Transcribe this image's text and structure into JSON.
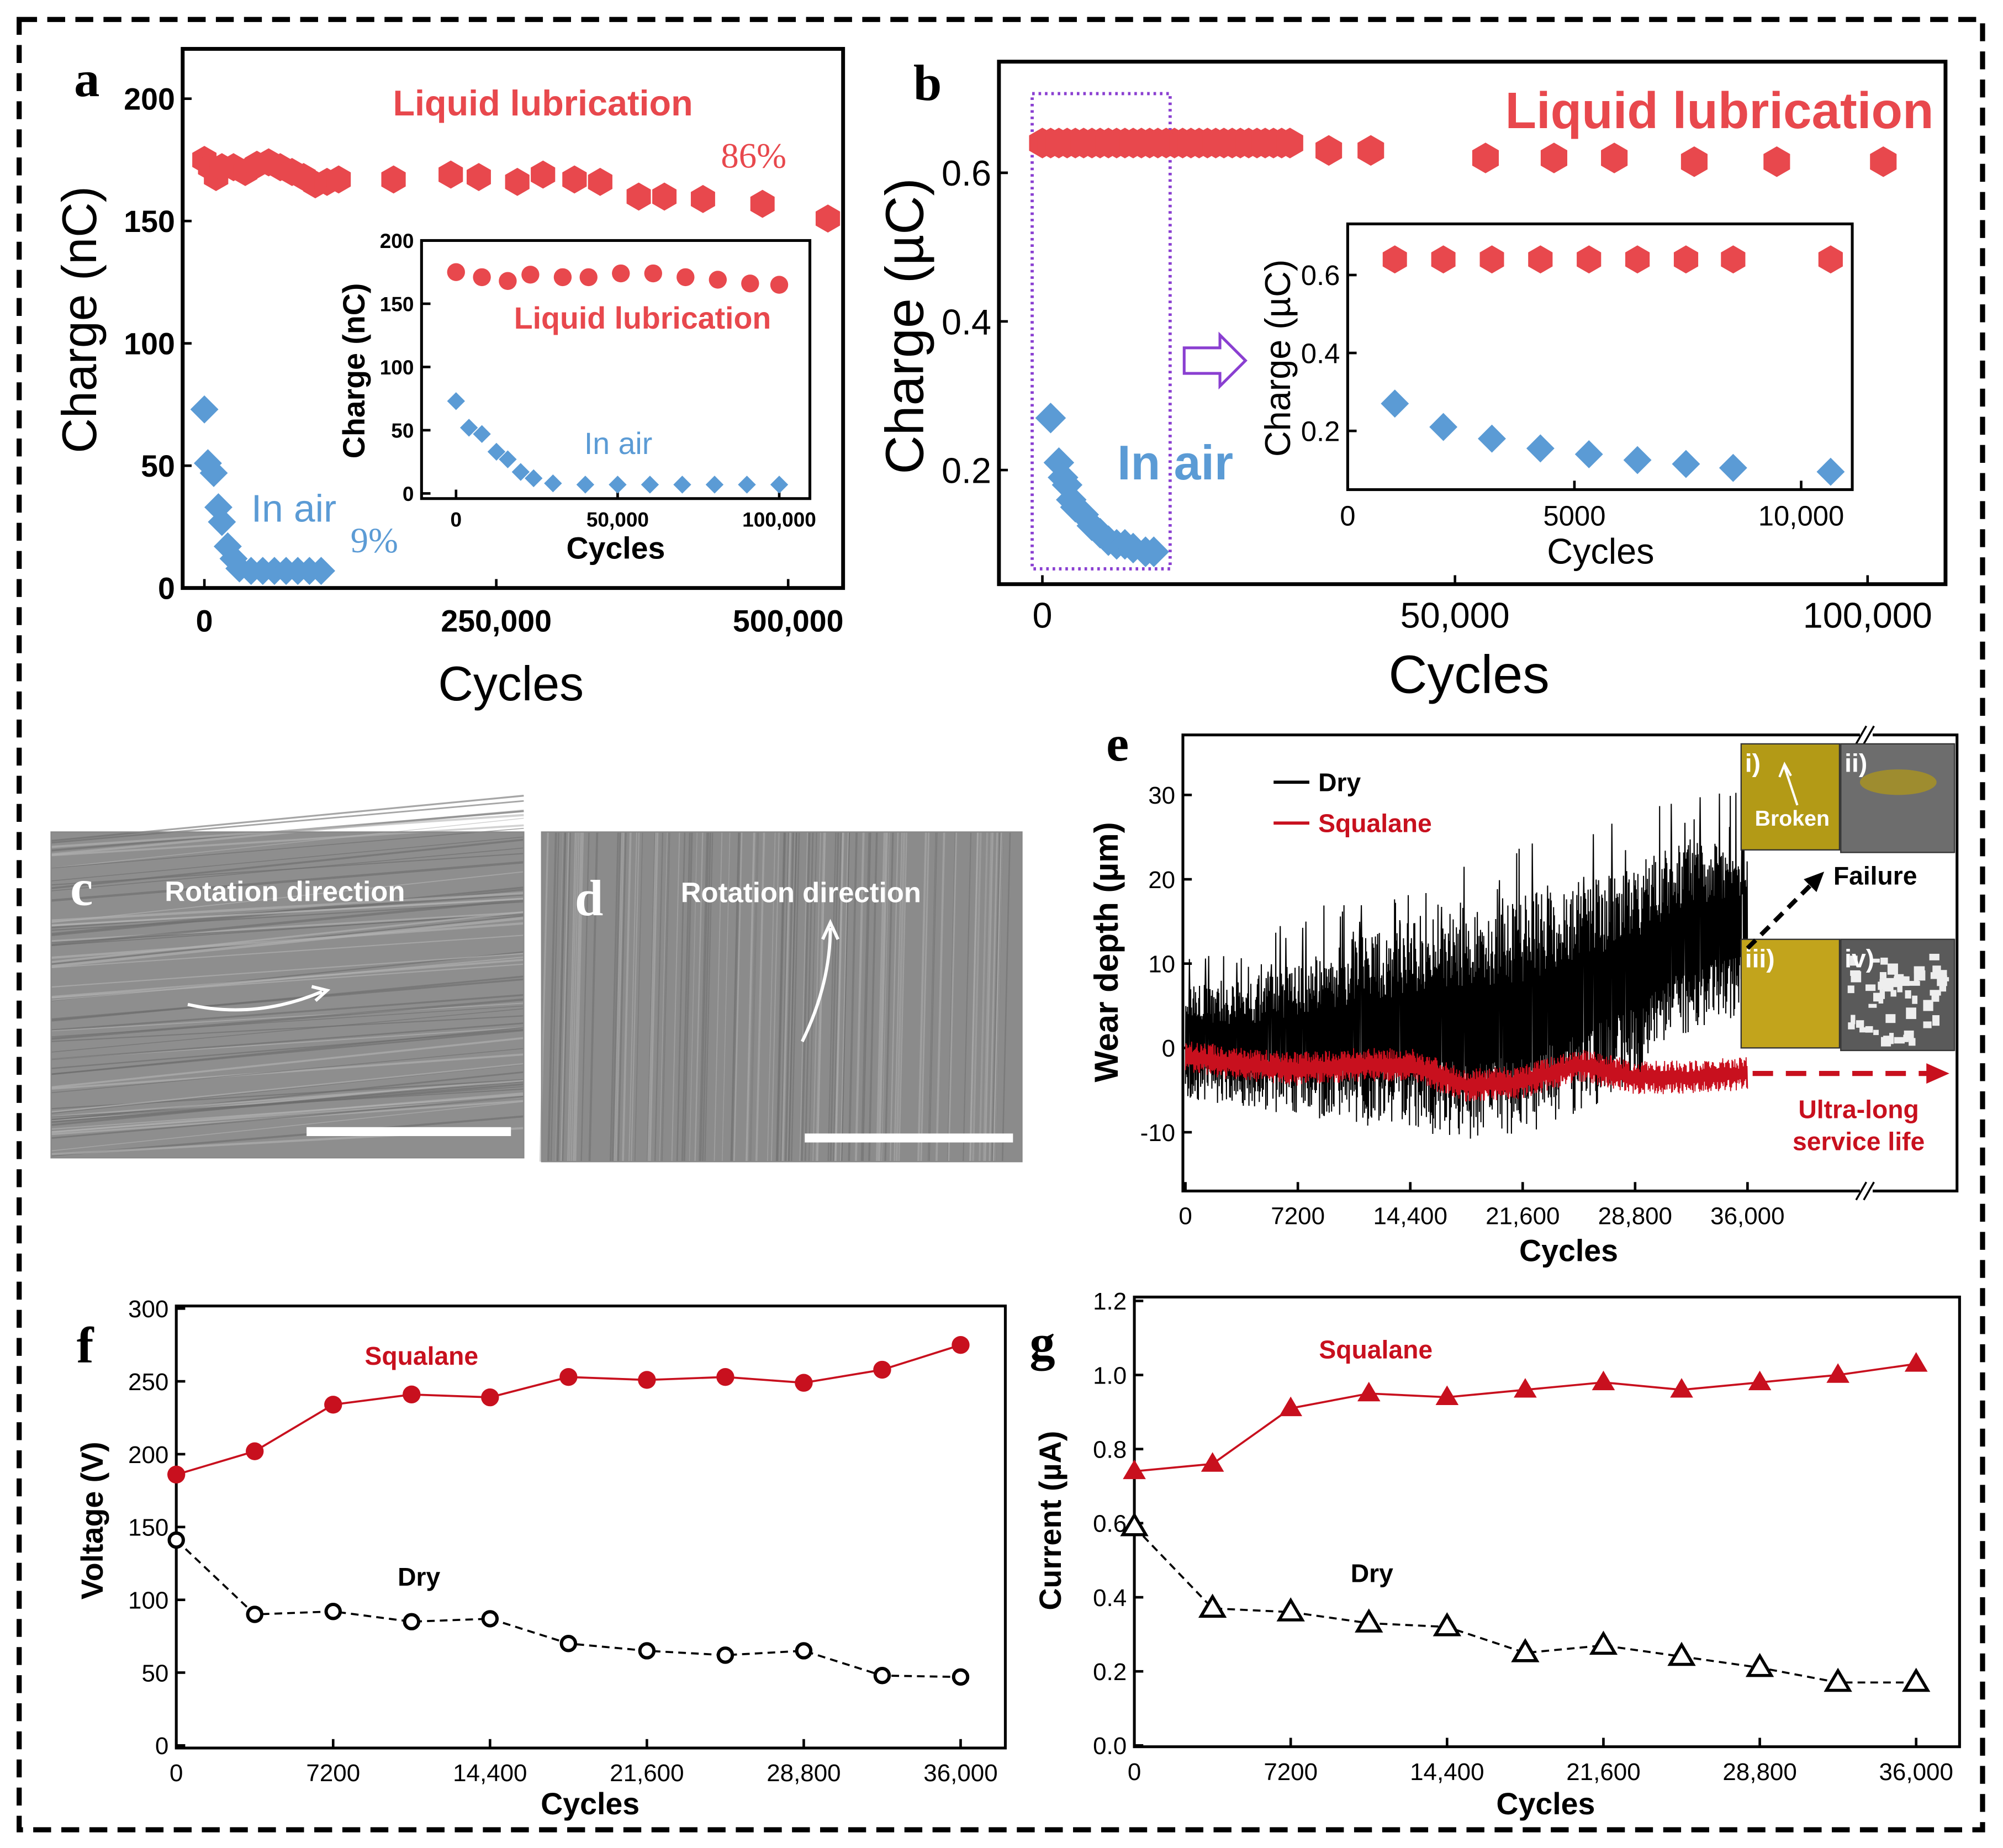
{
  "colors": {
    "lube_red": "#e8484d",
    "air_blue": "#5b9bd5",
    "squalane_red": "#c8101e",
    "dry_black": "#000000",
    "box_purple": "#8a3fd1"
  },
  "panels": {
    "c": {
      "label": "c",
      "caption": "Rotation direction"
    },
    "d": {
      "label": "d",
      "caption": "Rotation direction"
    }
  },
  "chart_data": [
    {
      "id": "a",
      "panel_label": "a",
      "type": "scatter",
      "xlabel": "Cycles",
      "ylabel": "Charge (nC)",
      "xlim": [
        -18600,
        547000
      ],
      "ylim": [
        0,
        220
      ],
      "xticks": [
        {
          "value": 0,
          "label": "0"
        },
        {
          "value": 250000,
          "label": "250,000"
        },
        {
          "value": 500000,
          "label": "500,000"
        }
      ],
      "yticks": [
        {
          "value": 0,
          "label": "0"
        },
        {
          "value": 50,
          "label": "50"
        },
        {
          "value": 100,
          "label": "100"
        },
        {
          "value": 150,
          "label": "150"
        },
        {
          "value": 200,
          "label": "200"
        }
      ],
      "series": [
        {
          "name": "Liquid lubrication",
          "color": "#e8484d",
          "marker": "hexagon",
          "x": [
            0,
            5000,
            10000,
            15000,
            25000,
            35000,
            45000,
            55000,
            65000,
            75000,
            85000,
            95000,
            105000,
            115000,
            162000,
            211000,
            235000,
            268000,
            290000,
            317000,
            339000,
            372000,
            394000,
            427000,
            478000,
            534000
          ],
          "y": [
            175,
            172,
            168,
            172,
            172,
            170,
            173,
            174,
            172,
            170,
            168,
            165,
            166,
            167,
            167,
            169,
            168,
            166,
            169,
            167,
            166,
            160,
            160,
            159,
            157,
            151
          ]
        },
        {
          "name": "In air",
          "color": "#5b9bd5",
          "marker": "diamond",
          "x": [
            0,
            3000,
            8000,
            12000,
            15000,
            20000,
            25000,
            30000,
            40000,
            50000,
            60000,
            70000,
            80000,
            90000,
            100000
          ],
          "y": [
            73,
            51,
            47,
            33,
            27,
            17,
            12,
            8,
            7,
            7,
            7,
            7,
            7,
            7,
            7
          ]
        }
      ],
      "annotations": [
        "86%",
        "9%"
      ]
    },
    {
      "id": "a-inset",
      "type": "scatter",
      "xlabel": "Cycles",
      "ylabel": "Charge (nC)",
      "xlim": [
        -10700,
        109000
      ],
      "ylim": [
        -4,
        200
      ],
      "xticks": [
        {
          "value": 0,
          "label": "0"
        },
        {
          "value": 50000,
          "label": "50,000"
        },
        {
          "value": 100000,
          "label": "100,000"
        }
      ],
      "yticks": [
        {
          "value": 0,
          "label": "0"
        },
        {
          "value": 50,
          "label": "50"
        },
        {
          "value": 100,
          "label": "100"
        },
        {
          "value": 150,
          "label": "150"
        },
        {
          "value": 200,
          "label": "200"
        }
      ],
      "series": [
        {
          "name": "Liquid lubrication",
          "color": "#e8484d",
          "marker": "circle",
          "x": [
            0,
            8000,
            16000,
            23000,
            33000,
            41000,
            51000,
            61000,
            71000,
            81000,
            91000,
            100000
          ],
          "y": [
            175,
            171,
            168,
            173,
            171,
            171,
            174,
            174,
            171,
            169,
            166,
            165
          ]
        },
        {
          "name": "In air",
          "color": "#5b9bd5",
          "marker": "diamond",
          "x": [
            0,
            4000,
            8000,
            12500,
            16000,
            20000,
            24000,
            30000,
            40000,
            50000,
            60000,
            70000,
            80000,
            90000,
            100000
          ],
          "y": [
            73,
            52,
            47,
            33,
            27,
            17,
            12,
            8,
            7,
            7,
            7,
            7,
            7,
            7,
            7
          ]
        }
      ],
      "annotations": []
    },
    {
      "id": "b",
      "panel_label": "b",
      "type": "scatter",
      "xlabel": "Cycles",
      "ylabel": "Charge (µC)",
      "xlim": [
        -5300,
        109400
      ],
      "ylim": [
        0.046,
        0.749
      ],
      "xticks": [
        {
          "value": 0,
          "label": "0"
        },
        {
          "value": 50000,
          "label": "50,000"
        },
        {
          "value": 100000,
          "label": "100,000"
        }
      ],
      "yticks": [
        {
          "value": 0.2,
          "label": "0.2"
        },
        {
          "value": 0.4,
          "label": "0.4"
        },
        {
          "value": 0.6,
          "label": "0.6"
        }
      ],
      "series": [
        {
          "name": "Liquid lubrication",
          "color": "#e8484d",
          "marker": "hexagon",
          "x": [
            0,
            1000,
            2000,
            3000,
            4000,
            5000,
            6000,
            7000,
            8000,
            9000,
            10000,
            11000,
            12000,
            13000,
            14000,
            15000,
            16000,
            17000,
            18000,
            19000,
            20000,
            21000,
            22000,
            23000,
            24000,
            25000,
            26000,
            27000,
            28000,
            29000,
            30000,
            34700,
            39800,
            53700,
            62000,
            69300,
            79000,
            89000,
            101900
          ],
          "y": [
            0.64,
            0.64,
            0.64,
            0.64,
            0.64,
            0.64,
            0.64,
            0.64,
            0.64,
            0.64,
            0.64,
            0.64,
            0.64,
            0.64,
            0.64,
            0.64,
            0.64,
            0.64,
            0.64,
            0.64,
            0.64,
            0.64,
            0.64,
            0.64,
            0.64,
            0.64,
            0.64,
            0.64,
            0.64,
            0.64,
            0.64,
            0.63,
            0.63,
            0.62,
            0.62,
            0.62,
            0.615,
            0.615,
            0.615
          ]
        },
        {
          "name": "In air",
          "color": "#5b9bd5",
          "marker": "diamond",
          "x": [
            1000,
            2000,
            2500,
            3000,
            3500,
            4000,
            5000,
            6000,
            7000,
            8000,
            9000,
            10000,
            11000,
            12500,
            13500
          ],
          "y": [
            0.27,
            0.21,
            0.19,
            0.18,
            0.16,
            0.15,
            0.14,
            0.125,
            0.115,
            0.105,
            0.1,
            0.1,
            0.095,
            0.09,
            0.09
          ]
        }
      ],
      "annotations": []
    },
    {
      "id": "b-inset",
      "type": "scatter",
      "xlabel": "Cycles",
      "ylabel": "Charge (µC)",
      "xlim": [
        0,
        11100
      ],
      "ylim": [
        0.05,
        0.73
      ],
      "xticks": [
        {
          "value": 0,
          "label": "0"
        },
        {
          "value": 5000,
          "label": "5000"
        },
        {
          "value": 10000,
          "label": "10,000"
        }
      ],
      "yticks": [
        {
          "value": 0.2,
          "label": "0.2"
        },
        {
          "value": 0.4,
          "label": "0.4"
        },
        {
          "value": 0.6,
          "label": "0.6"
        }
      ],
      "series": [
        {
          "color": "#e8484d",
          "marker": "hexagon",
          "x": [
            1040,
            2110,
            3180,
            4250,
            5320,
            6390,
            7460,
            8500,
            10650
          ],
          "y": [
            0.64,
            0.64,
            0.64,
            0.64,
            0.64,
            0.64,
            0.64,
            0.64,
            0.64
          ]
        },
        {
          "color": "#5b9bd5",
          "marker": "diamond",
          "x": [
            1040,
            2110,
            3180,
            4250,
            5320,
            6390,
            7460,
            8500,
            10650
          ],
          "y": [
            0.27,
            0.21,
            0.18,
            0.155,
            0.14,
            0.125,
            0.115,
            0.105,
            0.095
          ]
        }
      ],
      "annotations": []
    },
    {
      "id": "e",
      "panel_label": "e",
      "type": "line",
      "xlabel": "Cycles",
      "ylabel": "Wear depth (µm)",
      "xlim": [
        -150,
        49500
      ],
      "ylim": [
        -17,
        37
      ],
      "xticks": [
        {
          "value": 0,
          "label": "0"
        },
        {
          "value": 7200,
          "label": "7200"
        },
        {
          "value": 14400,
          "label": "14,400"
        },
        {
          "value": 21600,
          "label": "21,600"
        },
        {
          "value": 28800,
          "label": "28,800"
        },
        {
          "value": 36000,
          "label": "36,000"
        }
      ],
      "yticks": [
        {
          "value": -10,
          "label": "-10"
        },
        {
          "value": 0,
          "label": "0"
        },
        {
          "value": 10,
          "label": "10"
        },
        {
          "value": 20,
          "label": "20"
        },
        {
          "value": 30,
          "label": "30"
        }
      ],
      "series": [
        {
          "name": "Dry",
          "color": "#000000",
          "x": [
            0,
            3600,
            7200,
            10800,
            14400,
            18000,
            21600,
            25200,
            28800,
            32400,
            36000
          ],
          "low": [
            -6,
            -7,
            -8,
            -9,
            -10,
            -11,
            -11,
            -8,
            -4,
            2,
            4
          ],
          "high": [
            8,
            8,
            10,
            13,
            15,
            16,
            18,
            20,
            22,
            25,
            25
          ]
        },
        {
          "name": "Squalane",
          "color": "#c8101e",
          "x": [
            0,
            3600,
            7200,
            10800,
            14400,
            18000,
            21600,
            25200,
            28800,
            32400,
            36000
          ],
          "low": [
            -3,
            -4,
            -4.5,
            -4,
            -4,
            -6.5,
            -6,
            -4,
            -5.5,
            -5.5,
            -5
          ],
          "high": [
            1,
            0,
            -0.5,
            0,
            0,
            -2.5,
            -2,
            0,
            -1.5,
            -1.5,
            -1
          ]
        }
      ],
      "annotations": [
        "Failure",
        "Ultra-long",
        "service life",
        "Broken"
      ],
      "micrographs": [
        "i)",
        "ii)",
        "iii)",
        "iv)"
      ]
    },
    {
      "id": "f",
      "panel_label": "f",
      "type": "line",
      "xlabel": "Cycles",
      "ylabel": "Voltage (V)",
      "xlim": [
        0,
        37300
      ],
      "ylim": [
        0,
        300
      ],
      "xticks": [
        {
          "value": 0,
          "label": "0"
        },
        {
          "value": 7200,
          "label": "7200"
        },
        {
          "value": 14400,
          "label": "14,400"
        },
        {
          "value": 21600,
          "label": "21,600"
        },
        {
          "value": 28800,
          "label": "28,800"
        },
        {
          "value": 36000,
          "label": "36,000"
        }
      ],
      "yticks": [
        {
          "value": 0,
          "label": "0"
        },
        {
          "value": 50,
          "label": "50"
        },
        {
          "value": 100,
          "label": "100"
        },
        {
          "value": 150,
          "label": "150"
        },
        {
          "value": 200,
          "label": "200"
        },
        {
          "value": 250,
          "label": "250"
        },
        {
          "value": 300,
          "label": "300"
        }
      ],
      "series": [
        {
          "name": "Squalane",
          "color": "#c8101e",
          "marker": "circle-filled",
          "line": "solid",
          "x": [
            0,
            3600,
            7200,
            10800,
            14400,
            18000,
            21600,
            25200,
            28800,
            32400,
            36000
          ],
          "y": [
            186,
            202,
            234,
            241,
            239,
            253,
            251,
            253,
            249,
            258,
            275
          ]
        },
        {
          "name": "Dry",
          "color": "#000000",
          "marker": "circle-open",
          "line": "dashed",
          "x": [
            0,
            3600,
            7200,
            10800,
            14400,
            18000,
            21600,
            25200,
            28800,
            32400,
            36000
          ],
          "y": [
            141,
            90,
            92,
            85,
            87,
            70,
            65,
            62,
            65,
            48,
            47
          ]
        }
      ],
      "annotations": []
    },
    {
      "id": "g",
      "panel_label": "g",
      "type": "line",
      "xlabel": "Cycles",
      "ylabel": "Current (µA)",
      "xlim": [
        0,
        37000
      ],
      "ylim": [
        0,
        1.2
      ],
      "xticks": [
        {
          "value": 0,
          "label": "0"
        },
        {
          "value": 7200,
          "label": "7200"
        },
        {
          "value": 14400,
          "label": "14,400"
        },
        {
          "value": 21600,
          "label": "21,600"
        },
        {
          "value": 28800,
          "label": "28,800"
        },
        {
          "value": 36000,
          "label": "36,000"
        }
      ],
      "yticks": [
        {
          "value": 0,
          "label": "0.0"
        },
        {
          "value": 0.2,
          "label": "0.2"
        },
        {
          "value": 0.4,
          "label": "0.4"
        },
        {
          "value": 0.6,
          "label": "0.6"
        },
        {
          "value": 0.8,
          "label": "0.8"
        },
        {
          "value": 1.0,
          "label": "1.0"
        },
        {
          "value": 1.2,
          "label": "1.2"
        }
      ],
      "series": [
        {
          "name": "Squalane",
          "color": "#c8101e",
          "marker": "triangle-filled",
          "line": "solid",
          "x": [
            0,
            3600,
            7200,
            10800,
            14400,
            18000,
            21600,
            25200,
            28800,
            32400,
            36000
          ],
          "y": [
            0.74,
            0.76,
            0.91,
            0.95,
            0.94,
            0.96,
            0.98,
            0.96,
            0.98,
            1.0,
            1.03
          ]
        },
        {
          "name": "Dry",
          "color": "#000000",
          "marker": "triangle-open",
          "line": "dashed",
          "x": [
            0,
            3600,
            7200,
            10800,
            14400,
            18000,
            21600,
            25200,
            28800,
            32400,
            36000
          ],
          "y": [
            0.59,
            0.37,
            0.36,
            0.33,
            0.32,
            0.25,
            0.27,
            0.24,
            0.21,
            0.17,
            0.17
          ]
        }
      ],
      "annotations": []
    }
  ]
}
